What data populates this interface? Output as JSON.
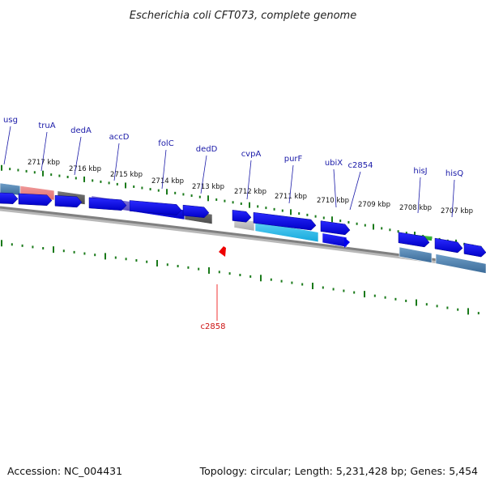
{
  "title": "Escherichia coli CFT073, complete genome",
  "footer": {
    "accession": "Accession: NC_004431",
    "summary": "Topology: circular; Length: 5,231,428 bp; Genes: 5,454"
  },
  "scale_labels": [
    "2717 kbp",
    "2716 kbp",
    "2715 kbp",
    "2714 kbp",
    "2713 kbp",
    "2712 kbp",
    "2711 kbp",
    "2710 kbp",
    "2709 kbp",
    "2708 kbp",
    "2707 kbp"
  ],
  "gene_labels": [
    "usg",
    "truA",
    "dedA",
    "accD",
    "folC",
    "dedD",
    "cvpA",
    "purF",
    "ubiX",
    "c2854",
    "hisJ",
    "hisQ",
    "c2858"
  ],
  "colors": {
    "cds": "#0000ee",
    "tick": "#1a7a1a",
    "backbone": "#808080",
    "label_line": "#1a1aa8",
    "highlight": "#ee0000"
  }
}
